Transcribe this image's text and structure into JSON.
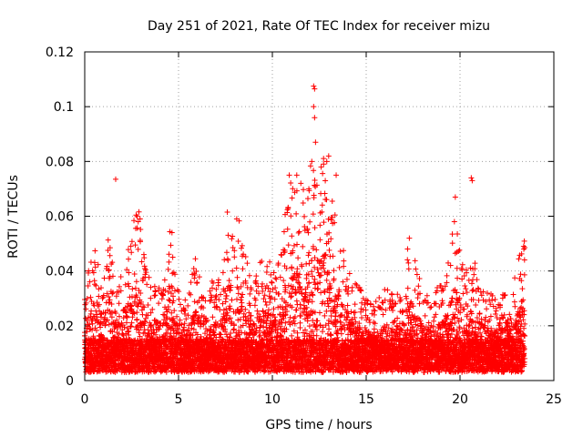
{
  "chart_data": {
    "type": "scatter",
    "title": "Day 251 of 2021, Rate Of TEC Index for receiver mizu",
    "xlabel": "GPS time / hours",
    "ylabel": "ROTI / TECUs",
    "xlim": [
      0,
      25
    ],
    "ylim": [
      0,
      0.12
    ],
    "xticks": [
      "0",
      "5",
      "10",
      "15",
      "20",
      "25"
    ],
    "yticks": [
      "0",
      "0.02",
      "0.04",
      "0.06",
      "0.08",
      "0.1",
      "0.12"
    ],
    "grid": true,
    "marker": "+",
    "color": "#ff0000",
    "density_profile": [
      [
        0.0,
        0.03
      ],
      [
        0.2,
        0.036
      ],
      [
        0.5,
        0.045
      ],
      [
        0.8,
        0.04
      ],
      [
        1.0,
        0.035
      ],
      [
        1.2,
        0.053
      ],
      [
        1.5,
        0.038
      ],
      [
        1.7,
        0.035
      ],
      [
        2.0,
        0.04
      ],
      [
        2.3,
        0.045
      ],
      [
        2.6,
        0.055
      ],
      [
        2.9,
        0.059
      ],
      [
        3.1,
        0.045
      ],
      [
        3.4,
        0.035
      ],
      [
        3.8,
        0.03
      ],
      [
        4.2,
        0.032
      ],
      [
        4.6,
        0.054
      ],
      [
        5.0,
        0.03
      ],
      [
        5.5,
        0.027
      ],
      [
        5.9,
        0.042
      ],
      [
        6.2,
        0.035
      ],
      [
        6.6,
        0.03
      ],
      [
        7.0,
        0.035
      ],
      [
        7.3,
        0.03
      ],
      [
        7.7,
        0.062
      ],
      [
        8.0,
        0.045
      ],
      [
        8.3,
        0.06
      ],
      [
        8.6,
        0.04
      ],
      [
        9.0,
        0.035
      ],
      [
        9.4,
        0.04
      ],
      [
        9.8,
        0.04
      ],
      [
        10.2,
        0.035
      ],
      [
        10.6,
        0.05
      ],
      [
        10.9,
        0.075
      ],
      [
        11.2,
        0.065
      ],
      [
        11.5,
        0.07
      ],
      [
        11.8,
        0.065
      ],
      [
        12.1,
        0.085
      ],
      [
        12.4,
        0.07
      ],
      [
        12.7,
        0.08
      ],
      [
        13.0,
        0.07
      ],
      [
        13.3,
        0.06
      ],
      [
        13.6,
        0.055
      ],
      [
        13.9,
        0.04
      ],
      [
        14.3,
        0.035
      ],
      [
        14.7,
        0.03
      ],
      [
        15.0,
        0.027
      ],
      [
        15.5,
        0.025
      ],
      [
        16.0,
        0.03
      ],
      [
        16.5,
        0.027
      ],
      [
        17.0,
        0.03
      ],
      [
        17.3,
        0.052
      ],
      [
        17.6,
        0.04
      ],
      [
        18.0,
        0.03
      ],
      [
        18.5,
        0.028
      ],
      [
        19.0,
        0.032
      ],
      [
        19.4,
        0.04
      ],
      [
        19.7,
        0.058
      ],
      [
        20.0,
        0.045
      ],
      [
        20.4,
        0.035
      ],
      [
        20.7,
        0.043
      ],
      [
        21.0,
        0.032
      ],
      [
        21.5,
        0.028
      ],
      [
        22.0,
        0.027
      ],
      [
        22.5,
        0.03
      ],
      [
        23.0,
        0.04
      ],
      [
        23.4,
        0.048
      ]
    ],
    "outliers": [
      [
        1.65,
        0.0735
      ],
      [
        7.6,
        0.0615
      ],
      [
        8.1,
        0.059
      ],
      [
        12.2,
        0.1075
      ],
      [
        12.25,
        0.1065
      ],
      [
        12.2,
        0.1
      ],
      [
        12.25,
        0.096
      ],
      [
        12.3,
        0.087
      ],
      [
        12.1,
        0.08
      ],
      [
        12.6,
        0.078
      ],
      [
        12.9,
        0.08
      ],
      [
        13.0,
        0.082
      ],
      [
        13.4,
        0.075
      ],
      [
        10.9,
        0.075
      ],
      [
        11.3,
        0.075
      ],
      [
        19.75,
        0.067
      ],
      [
        19.7,
        0.058
      ],
      [
        20.6,
        0.074
      ],
      [
        20.65,
        0.073
      ],
      [
        2.85,
        0.058
      ],
      [
        2.95,
        0.059
      ],
      [
        4.65,
        0.054
      ],
      [
        17.3,
        0.052
      ],
      [
        23.4,
        0.048
      ]
    ]
  }
}
